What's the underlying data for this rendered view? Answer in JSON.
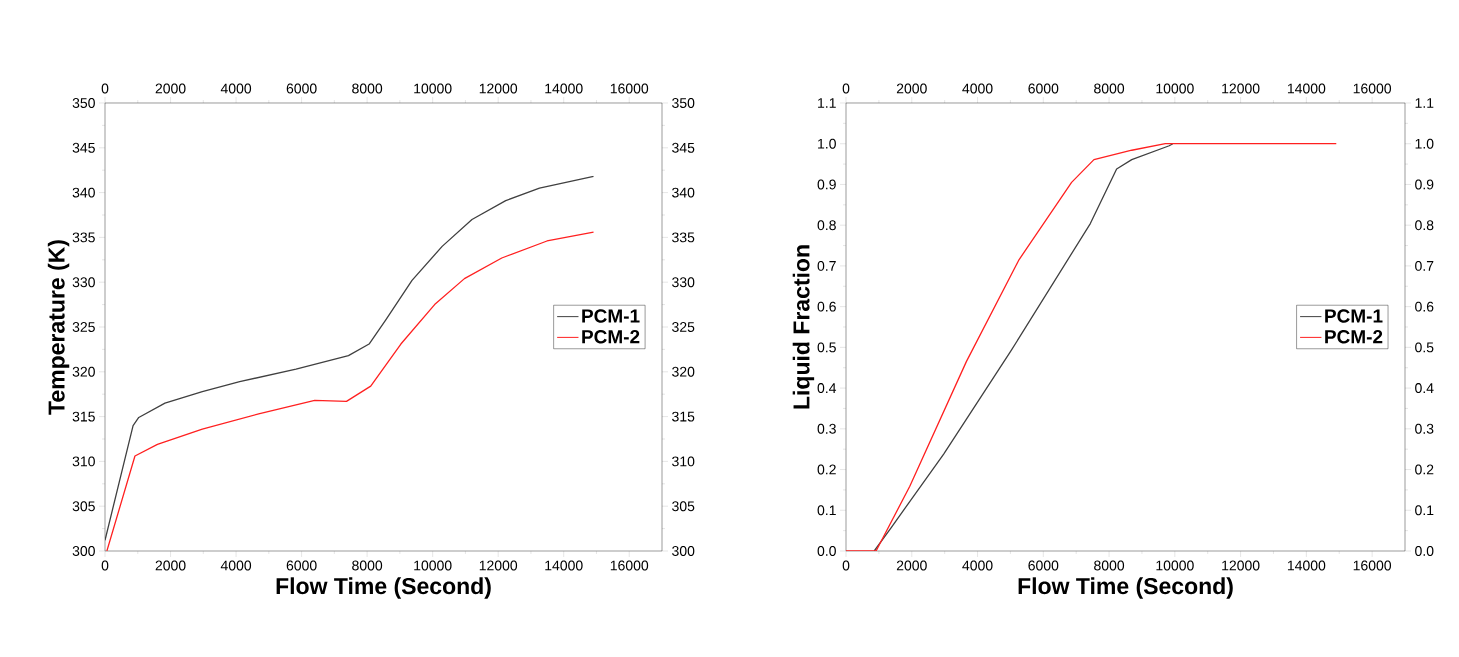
{
  "chart_data": [
    {
      "type": "line",
      "xlabel": "Flow Time (Second)",
      "ylabel": "Temperature (K)",
      "xlim": [
        0,
        17000
      ],
      "xticks": [
        0,
        2000,
        4000,
        6000,
        8000,
        10000,
        12000,
        14000,
        16000
      ],
      "x2lim": [
        0,
        17000
      ],
      "x2ticks": [
        0,
        2000,
        4000,
        6000,
        8000,
        10000,
        12000,
        14000,
        16000
      ],
      "ylim": [
        300,
        350
      ],
      "yticks": [
        300,
        305,
        310,
        315,
        320,
        325,
        330,
        335,
        340,
        345,
        350
      ],
      "y2lim": [
        300,
        350
      ],
      "y2ticks": [
        300,
        305,
        310,
        315,
        320,
        325,
        330,
        335,
        340,
        345,
        350
      ],
      "legend": "right",
      "marker": "none",
      "line_style": "solid",
      "series": [
        {
          "name": "PCM-1",
          "color": "#404040",
          "x": [
            0,
            857,
            1030,
            1830,
            2970,
            4110,
            5830,
            7430,
            8060,
            8570,
            9370,
            10290,
            11200,
            12230,
            13260,
            14910
          ],
          "values": [
            301.2,
            314.0,
            314.9,
            316.5,
            317.8,
            318.9,
            320.3,
            321.8,
            323.1,
            325.8,
            330.2,
            334.0,
            337.0,
            339.1,
            340.5,
            341.8
          ]
        },
        {
          "name": "PCM-2",
          "color": "#ff2020",
          "x": [
            57,
            914,
            1600,
            2970,
            4690,
            6400,
            7370,
            8110,
            9030,
            10060,
            10970,
            12110,
            13490,
            14910
          ],
          "values": [
            300,
            310.6,
            311.9,
            313.6,
            315.3,
            316.8,
            316.7,
            318.4,
            323.1,
            327.5,
            330.4,
            332.7,
            334.6,
            335.6
          ]
        }
      ]
    },
    {
      "type": "line",
      "xlabel": "Flow Time (Second)",
      "ylabel": "Liquid Fraction",
      "xlim": [
        0,
        17000
      ],
      "xticks": [
        0,
        2000,
        4000,
        6000,
        8000,
        10000,
        12000,
        14000,
        16000
      ],
      "x2lim": [
        0,
        17000
      ],
      "x2ticks": [
        0,
        2000,
        4000,
        6000,
        8000,
        10000,
        12000,
        14000,
        16000
      ],
      "ylim": [
        0,
        1.1
      ],
      "yticks": [
        {
          "value": 0,
          "label": "0.0"
        },
        0.1,
        0.2,
        0.3,
        0.4,
        0.5,
        0.6,
        0.7,
        0.8,
        0.9,
        {
          "value": 1,
          "label": "1.0"
        },
        1.1
      ],
      "y2lim": [
        0,
        1.1
      ],
      "y2ticks": [
        {
          "value": 0,
          "label": "0.0"
        },
        0.1,
        0.2,
        0.3,
        0.4,
        0.5,
        0.6,
        0.7,
        0.8,
        0.9,
        {
          "value": 1,
          "label": "1.0"
        },
        1.1
      ],
      "legend": "right",
      "marker": "none",
      "line_style": "solid",
      "series": [
        {
          "name": "PCM-1",
          "color": "#404040",
          "x": [
            857,
            1370,
            2970,
            5030,
            7430,
            8230,
            8690,
            9830,
            9940
          ],
          "values": [
            0,
            0.057,
            0.238,
            0.493,
            0.804,
            0.938,
            0.961,
            0.995,
            1.0
          ]
        },
        {
          "name": "PCM-2",
          "color": "#ff2020",
          "x": [
            0,
            914,
            1940,
            3660,
            5260,
            6860,
            7540,
            8690,
            9710,
            14910
          ],
          "values": [
            0,
            0,
            0.159,
            0.465,
            0.715,
            0.905,
            0.961,
            0.984,
            1.0,
            1.0
          ]
        }
      ]
    }
  ]
}
